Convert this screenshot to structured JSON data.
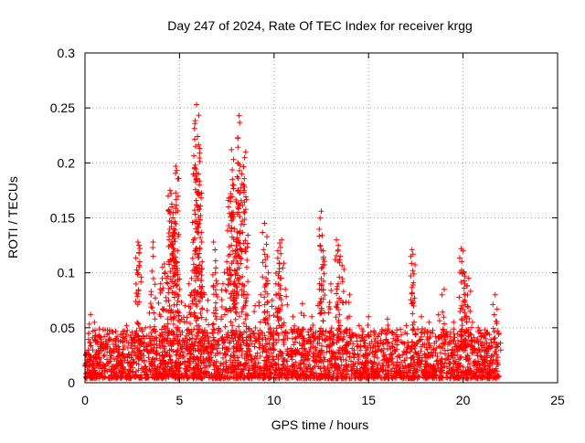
{
  "chart_data": {
    "type": "scatter",
    "title": "Day 247 of 2024, Rate Of TEC Index for receiver krgg",
    "xlabel": "GPS time / hours",
    "ylabel": "ROTI / TECUs",
    "xlim": [
      0,
      25
    ],
    "ylim": [
      0,
      0.3
    ],
    "x_ticks": [
      0,
      5,
      10,
      15,
      20,
      25
    ],
    "x_tick_labels": [
      "0",
      "5",
      "10",
      "15",
      "20",
      "25"
    ],
    "y_ticks": [
      0,
      0.05,
      0.1,
      0.15,
      0.2,
      0.25,
      0.3
    ],
    "y_tick_labels": [
      "0",
      "0.05",
      "0.1",
      "0.15",
      "0.2",
      "0.25",
      "0.3"
    ],
    "grid": true,
    "marker": "+",
    "color": "#ff0000",
    "data_x_range": [
      0,
      21.9
    ],
    "series": [
      {
        "name": "ROTI",
        "points": [
          [
            0.2,
            0.045
          ],
          [
            0.3,
            0.062
          ],
          [
            0.5,
            0.055
          ],
          [
            0.8,
            0.041
          ],
          [
            1.0,
            0.035
          ],
          [
            1.3,
            0.048
          ],
          [
            1.6,
            0.038
          ],
          [
            1.9,
            0.044
          ],
          [
            2.2,
            0.052
          ],
          [
            2.5,
            0.046
          ],
          [
            2.8,
            0.128
          ],
          [
            2.85,
            0.125
          ],
          [
            2.9,
            0.11
          ],
          [
            3.2,
            0.05
          ],
          [
            3.5,
            0.083
          ],
          [
            3.6,
            0.128
          ],
          [
            3.7,
            0.058
          ],
          [
            4.0,
            0.09
          ],
          [
            4.1,
            0.105
          ],
          [
            4.2,
            0.108
          ],
          [
            4.3,
            0.095
          ],
          [
            4.4,
            0.065
          ],
          [
            4.5,
            0.175
          ],
          [
            4.55,
            0.172
          ],
          [
            4.6,
            0.16
          ],
          [
            4.65,
            0.15
          ],
          [
            4.7,
            0.14
          ],
          [
            4.75,
            0.145
          ],
          [
            4.8,
            0.197
          ],
          [
            4.85,
            0.193
          ],
          [
            4.9,
            0.12
          ],
          [
            5.0,
            0.085
          ],
          [
            5.3,
            0.07
          ],
          [
            5.5,
            0.09
          ],
          [
            5.6,
            0.08
          ],
          [
            5.7,
            0.102
          ],
          [
            5.8,
            0.157
          ],
          [
            5.85,
            0.215
          ],
          [
            5.9,
            0.253
          ],
          [
            5.95,
            0.224
          ],
          [
            6.0,
            0.19
          ],
          [
            6.05,
            0.18
          ],
          [
            6.1,
            0.132
          ],
          [
            6.2,
            0.11
          ],
          [
            6.5,
            0.075
          ],
          [
            6.8,
            0.128
          ],
          [
            6.9,
            0.1
          ],
          [
            7.0,
            0.09
          ],
          [
            7.3,
            0.09
          ],
          [
            7.5,
            0.11
          ],
          [
            7.6,
            0.168
          ],
          [
            7.7,
            0.172
          ],
          [
            7.75,
            0.212
          ],
          [
            7.8,
            0.185
          ],
          [
            7.9,
            0.14
          ],
          [
            7.95,
            0.12
          ],
          [
            8.0,
            0.13
          ],
          [
            8.1,
            0.175
          ],
          [
            8.15,
            0.243
          ],
          [
            8.2,
            0.198
          ],
          [
            8.3,
            0.19
          ],
          [
            8.4,
            0.175
          ],
          [
            8.5,
            0.21
          ],
          [
            8.6,
            0.08
          ],
          [
            9.0,
            0.07
          ],
          [
            9.3,
            0.08
          ],
          [
            9.5,
            0.145
          ],
          [
            9.6,
            0.126
          ],
          [
            9.7,
            0.1
          ],
          [
            9.9,
            0.075
          ],
          [
            10.1,
            0.09
          ],
          [
            10.2,
            0.12
          ],
          [
            10.3,
            0.127
          ],
          [
            10.4,
            0.13
          ],
          [
            10.6,
            0.085
          ],
          [
            11.0,
            0.06
          ],
          [
            11.5,
            0.072
          ],
          [
            12.0,
            0.06
          ],
          [
            12.4,
            0.085
          ],
          [
            12.5,
            0.156
          ],
          [
            12.55,
            0.134
          ],
          [
            12.6,
            0.12
          ],
          [
            13.0,
            0.09
          ],
          [
            13.3,
            0.13
          ],
          [
            13.4,
            0.125
          ],
          [
            13.5,
            0.115
          ],
          [
            13.7,
            0.103
          ],
          [
            14.0,
            0.08
          ],
          [
            14.5,
            0.052
          ],
          [
            15.0,
            0.06
          ],
          [
            15.5,
            0.042
          ],
          [
            16.0,
            0.058
          ],
          [
            16.5,
            0.048
          ],
          [
            17.0,
            0.052
          ],
          [
            17.3,
            0.121
          ],
          [
            17.35,
            0.117
          ],
          [
            17.4,
            0.099
          ],
          [
            17.8,
            0.06
          ],
          [
            18.2,
            0.055
          ],
          [
            18.7,
            0.062
          ],
          [
            19.0,
            0.085
          ],
          [
            19.5,
            0.055
          ],
          [
            19.9,
            0.122
          ],
          [
            20.0,
            0.12
          ],
          [
            20.05,
            0.1
          ],
          [
            20.1,
            0.097
          ],
          [
            20.2,
            0.088
          ],
          [
            20.3,
            0.095
          ],
          [
            20.5,
            0.055
          ],
          [
            20.8,
            0.05
          ],
          [
            21.2,
            0.04
          ],
          [
            21.7,
            0.08
          ],
          [
            21.8,
            0.067
          ],
          [
            21.9,
            0.045
          ]
        ]
      }
    ]
  }
}
